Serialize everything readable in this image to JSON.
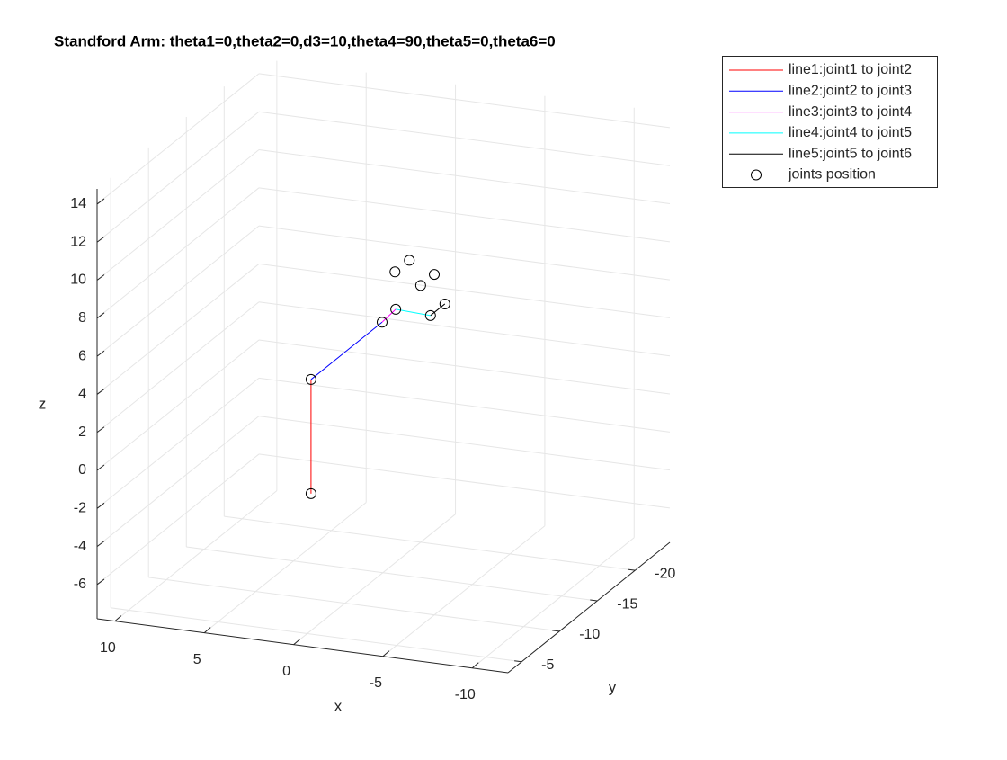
{
  "chart_data": {
    "type": "line3d",
    "title": "Standford Arm: theta1=0,theta2=0,d3=10,theta4=90,theta5=0,theta6=0",
    "xlabel": "x",
    "ylabel": "y",
    "zlabel": "z",
    "xlim": [
      -12,
      11
    ],
    "ylim": [
      -24.6,
      -3.2
    ],
    "zlim": [
      -7.8,
      14.8
    ],
    "xticks": [
      -10,
      -5,
      0,
      5,
      10
    ],
    "yticks": [
      -20,
      -15,
      -10,
      -5
    ],
    "zticks": [
      -6,
      -4,
      -2,
      0,
      2,
      4,
      6,
      8,
      10,
      12,
      14
    ],
    "grid": true,
    "legend": "outside-northeast",
    "series": [
      {
        "name": "line1:joint1 to joint2",
        "color": "#ff0000",
        "x": [
          0,
          0
        ],
        "y": [
          -5.5,
          -5.5
        ],
        "z": [
          -0.6,
          5.4
        ]
      },
      {
        "name": "line2:joint2 to joint3",
        "color": "#0000ff",
        "x": [
          0,
          0
        ],
        "y": [
          -5.5,
          -14.9
        ],
        "z": [
          5.4,
          5.4
        ]
      },
      {
        "name": "line3:joint3 to joint4",
        "color": "#ff00ff",
        "x": [
          0,
          0
        ],
        "y": [
          -14.9,
          -16.7
        ],
        "z": [
          5.4,
          5.5
        ]
      },
      {
        "name": "line4:joint4 to joint5",
        "color": "#00ffff",
        "x": [
          0,
          0
        ],
        "y": [
          -16.7,
          -21.3
        ],
        "z": [
          5.5,
          3.7
        ]
      },
      {
        "name": "line5:joint5 to joint6",
        "color": "#000000",
        "x": [
          0,
          0
        ],
        "y": [
          -21.3,
          -23.2
        ],
        "z": [
          3.7,
          3.7
        ]
      },
      {
        "name": "joints position",
        "color": "#000000",
        "marker": "circle",
        "x": [
          0,
          0,
          0,
          0,
          0,
          0,
          0,
          0,
          0,
          0
        ],
        "y": [
          -5.5,
          -5.5,
          -14.9,
          -16.7,
          -16.6,
          -18.5,
          -20.0,
          -21.8,
          -21.3,
          -23.2
        ],
        "z": [
          -0.6,
          5.4,
          5.4,
          5.5,
          7.5,
          7.5,
          5.7,
          5.7,
          3.7,
          3.7
        ]
      }
    ]
  }
}
